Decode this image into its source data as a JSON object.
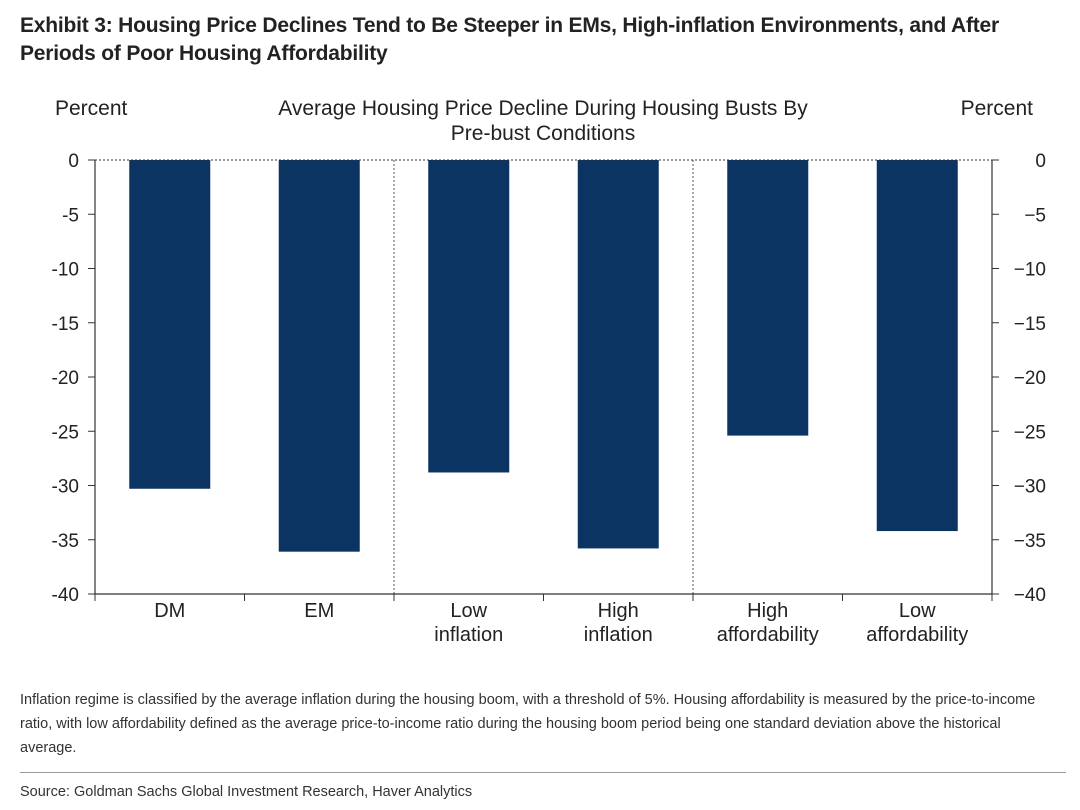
{
  "exhibit_title": "Exhibit 3: Housing Price Declines Tend to Be Steeper in EMs, High-inflation Environments, and After Periods of Poor Housing Affordability",
  "footnote": "Inflation regime is classified by the average inflation during the housing boom, with a threshold of 5%. Housing affordability is measured by the price-to-income ratio, with low affordability defined as the average price-to-income ratio during the housing boom period being one standard deviation above the historical average.",
  "source": "Source: Goldman Sachs Global Investment Research, Haver Analytics",
  "colors": {
    "bar": "#0b3463",
    "axis": "#333333",
    "separator": "#555555"
  },
  "chart_data": {
    "type": "bar",
    "title_lines": [
      "Average Housing Price Decline During Housing Busts By",
      "Pre-bust Conditions"
    ],
    "ylabel_left": "Percent",
    "ylabel_right": "Percent",
    "categories": [
      [
        "DM"
      ],
      [
        "EM"
      ],
      [
        "Low",
        "inflation"
      ],
      [
        "High",
        "inflation"
      ],
      [
        "High",
        "affordability"
      ],
      [
        "Low",
        "affordability"
      ]
    ],
    "values": [
      -30.3,
      -36.1,
      -28.8,
      -35.8,
      -25.4,
      -34.2
    ],
    "ylim": [
      -40,
      0
    ],
    "yticks": [
      0,
      -5,
      -10,
      -15,
      -20,
      -25,
      -30,
      -35,
      -40
    ],
    "ytick_labels": [
      "0",
      "-5",
      "-10",
      "-15",
      "-20",
      "-25",
      "-30",
      "-35",
      "-40"
    ],
    "ytick_labels_right": [
      "0",
      "−5",
      "−10",
      "−15",
      "−20",
      "−25",
      "−30",
      "−35",
      "−40"
    ],
    "group_separators_after": [
      1,
      3
    ],
    "zero_line": "dashed",
    "grid": false,
    "legend": "none"
  }
}
